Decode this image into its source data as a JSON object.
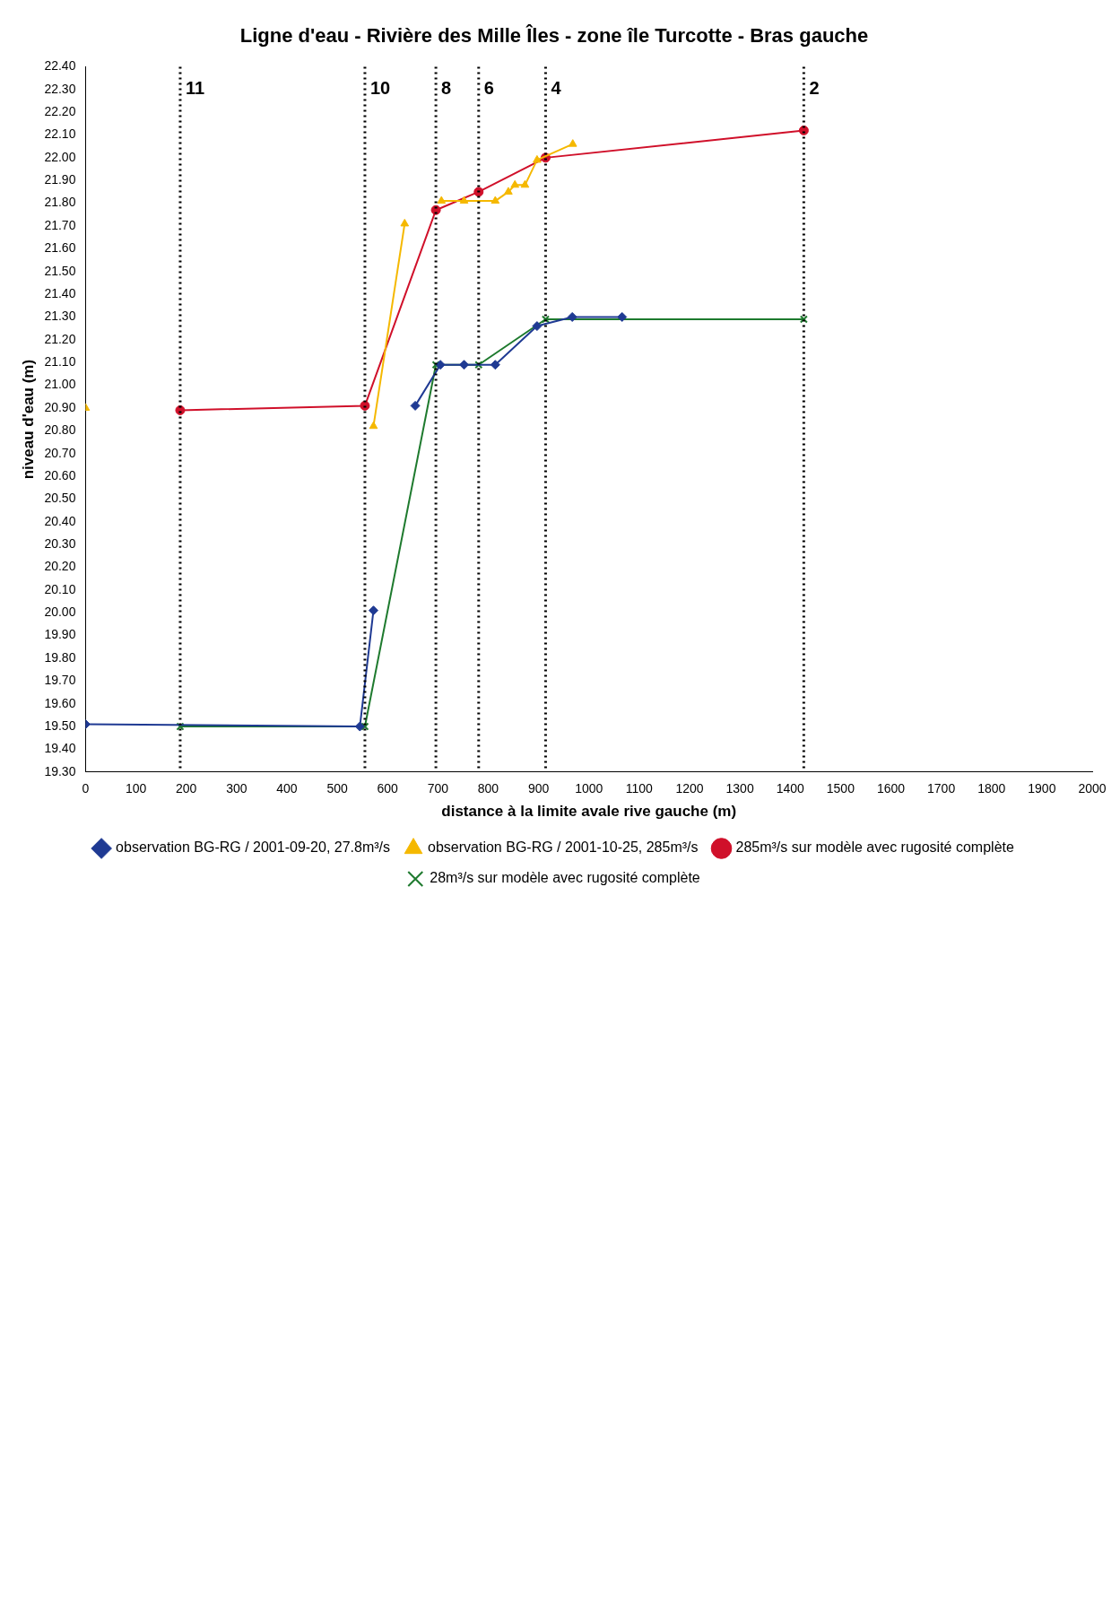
{
  "chart_data": {
    "type": "line",
    "title": "Ligne d'eau - Rivière des Mille Îles - zone île Turcotte - Bras gauche",
    "xlabel": "distance à la limite avale rive gauche (m)",
    "ylabel": "niveau d'eau (m)",
    "xlim": [
      0,
      2000
    ],
    "xticks": [
      0,
      100,
      200,
      300,
      400,
      500,
      600,
      700,
      800,
      900,
      1000,
      1100,
      1200,
      1300,
      1400,
      1500,
      1600,
      1700,
      1800,
      1900,
      2000
    ],
    "ylim": [
      19.3,
      22.4
    ],
    "yticks": [
      {
        "value": 19.3,
        "label": "19.30"
      },
      {
        "value": 19.4,
        "label": "19.40"
      },
      {
        "value": 19.5,
        "label": "19.50"
      },
      {
        "value": 19.6,
        "label": "19.60"
      },
      {
        "value": 19.7,
        "label": "19.70"
      },
      {
        "value": 19.8,
        "label": "19.80"
      },
      {
        "value": 19.9,
        "label": "19.90"
      },
      {
        "value": 20.0,
        "label": "20.00"
      },
      {
        "value": 20.1,
        "label": "20.10"
      },
      {
        "value": 20.2,
        "label": "20.20"
      },
      {
        "value": 20.3,
        "label": "20.30"
      },
      {
        "value": 20.4,
        "label": "20.40"
      },
      {
        "value": 20.5,
        "label": "20.50"
      },
      {
        "value": 20.6,
        "label": "20.60"
      },
      {
        "value": 20.7,
        "label": "20.70"
      },
      {
        "value": 20.8,
        "label": "20.80"
      },
      {
        "value": 20.9,
        "label": "20.90"
      },
      {
        "value": 21.0,
        "label": "21.00"
      },
      {
        "value": 21.1,
        "label": "21.10"
      },
      {
        "value": 21.2,
        "label": "21.20"
      },
      {
        "value": 21.3,
        "label": "21.30"
      },
      {
        "value": 21.4,
        "label": "21.40"
      },
      {
        "value": 21.5,
        "label": "21.50"
      },
      {
        "value": 21.6,
        "label": "21.60"
      },
      {
        "value": 21.7,
        "label": "21.70"
      },
      {
        "value": 21.8,
        "label": "21.80"
      },
      {
        "value": 21.9,
        "label": "21.90"
      },
      {
        "value": 22.0,
        "label": "22.00"
      },
      {
        "value": 22.1,
        "label": "22.10"
      },
      {
        "value": 22.2,
        "label": "22.20"
      },
      {
        "value": 22.3,
        "label": "22.30"
      },
      {
        "value": 22.4,
        "label": "22.40"
      }
    ],
    "legend": "bottom",
    "annotations": [
      {
        "text": "2",
        "x": 1427,
        "y": 22.3
      },
      {
        "text": "4",
        "x": 914,
        "y": 22.3
      },
      {
        "text": "6",
        "x": 781,
        "y": 22.3
      },
      {
        "text": "8",
        "x": 696,
        "y": 22.3
      },
      {
        "text": "10",
        "x": 555,
        "y": 22.3
      },
      {
        "text": "11",
        "x": 188,
        "y": 22.3
      }
    ],
    "series": [
      {
        "name": "observation BG-RG / 2001-09-20, 27.8m³/s",
        "color": "#1f3a93",
        "marker": "diamond",
        "x": [
          1066,
          967,
          897,
          814,
          752,
          705,
          655,
          610,
          572,
          545,
          0
        ],
        "values": [
          21.3,
          21.3,
          21.26,
          21.09,
          21.09,
          21.09,
          20.91,
          null,
          20.01,
          19.5,
          19.51
        ]
      },
      {
        "name": "observation BG-RG / 2001-10-25, 285m³/s",
        "color": "#f5b800",
        "marker": "triangle",
        "x": [
          968,
          897,
          873,
          853,
          840,
          814,
          752,
          707,
          670,
          634,
          572,
          300,
          0
        ],
        "values": [
          22.06,
          21.99,
          21.88,
          21.88,
          21.85,
          21.81,
          21.81,
          21.81,
          null,
          21.71,
          20.82,
          null,
          20.9
        ]
      },
      {
        "name": "285m³/s sur modèle avec rugosité complète",
        "color": "#d0102a",
        "marker": "circle",
        "x": [
          1427,
          914,
          781,
          696,
          555,
          188
        ],
        "values": [
          22.12,
          22.0,
          21.85,
          21.77,
          20.91,
          20.89
        ]
      },
      {
        "name": "28m³/s sur modèle avec rugosité complète",
        "color": "#1e7a2e",
        "marker": "cross",
        "x": [
          1427,
          914,
          781,
          696,
          555,
          188
        ],
        "values": [
          21.29,
          21.29,
          21.09,
          21.09,
          19.5,
          19.5
        ]
      }
    ],
    "ref_lines": [
      {
        "axis": "x",
        "value": 1427,
        "color": "#000000",
        "line_style": "dotted"
      },
      {
        "axis": "x",
        "value": 914,
        "color": "#000000",
        "line_style": "dotted"
      },
      {
        "axis": "x",
        "value": 781,
        "color": "#000000",
        "line_style": "dotted"
      },
      {
        "axis": "x",
        "value": 696,
        "color": "#000000",
        "line_style": "dotted"
      },
      {
        "axis": "x",
        "value": 555,
        "color": "#000000",
        "line_style": "dotted"
      },
      {
        "axis": "x",
        "value": 188,
        "color": "#000000",
        "line_style": "dotted"
      }
    ]
  }
}
